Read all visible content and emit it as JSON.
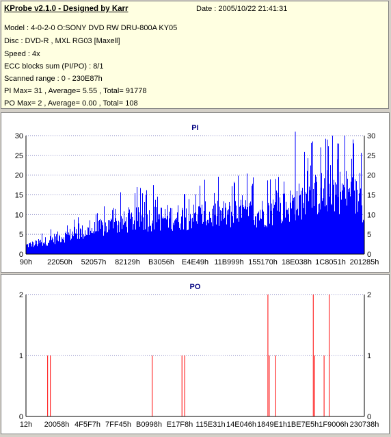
{
  "header": {
    "title": "KProbe v2.1.0 - Designed by Karr",
    "date": "Date : 2005/10/22 21:41:31",
    "lines": [
      "Model : 4-0-2-0 O:SONY    DVD RW DRU-800A  KY05",
      "Disc : DVD-R , MXL RG03 [Maxell]",
      "Speed : 4x",
      "ECC blocks sum (PI/PO) : 8/1",
      "Scanned range : 0 - 230E87h",
      "PI Max= 31 , Average= 5.55 , Total= 91778",
      "PO Max= 2 , Average= 0.00 , Total= 108"
    ]
  },
  "chart_data": [
    {
      "type": "bar",
      "title": "PI",
      "ylim": [
        0,
        30
      ],
      "yticks": [
        0,
        5,
        10,
        15,
        20,
        25,
        30
      ],
      "xticks": [
        "90h",
        "22050h",
        "52057h",
        "82129h",
        "B3056h",
        "E4E49h",
        "11B999h",
        "155170h",
        "18E038h",
        "1C8051h",
        "201285h"
      ],
      "grid": true,
      "color": "#0000ff",
      "profile": [
        [
          0,
          2.5
        ],
        [
          0.05,
          3.5
        ],
        [
          0.1,
          5
        ],
        [
          0.15,
          6
        ],
        [
          0.2,
          7
        ],
        [
          0.28,
          9
        ],
        [
          0.33,
          10
        ],
        [
          0.4,
          10.5
        ],
        [
          0.5,
          11
        ],
        [
          0.6,
          11.5
        ],
        [
          0.7,
          12
        ],
        [
          0.75,
          13
        ],
        [
          0.8,
          15
        ],
        [
          0.85,
          17
        ],
        [
          0.9,
          18.5
        ],
        [
          0.95,
          18
        ],
        [
          0.98,
          16
        ],
        [
          1.0,
          14
        ]
      ],
      "spikes": [
        [
          0.795,
          31
        ],
        [
          0.905,
          30
        ],
        [
          0.89,
          29
        ],
        [
          0.92,
          28
        ],
        [
          0.87,
          27
        ]
      ]
    },
    {
      "type": "bar",
      "title": "PO",
      "ylim": [
        0,
        2
      ],
      "yticks": [
        0,
        1,
        2
      ],
      "xticks": [
        "12h",
        "20058h",
        "4F5F7h",
        "7FF45h",
        "B0998h",
        "E17F8h",
        "115E31h",
        "14E046h",
        "1849E1h",
        "1BE7E5h",
        "1F9006h",
        "230738h"
      ],
      "grid": true,
      "color": "#ff0000",
      "bars": [
        [
          0.063,
          1
        ],
        [
          0.071,
          1
        ],
        [
          0.372,
          1
        ],
        [
          0.46,
          1
        ],
        [
          0.468,
          1
        ],
        [
          0.714,
          2
        ],
        [
          0.718,
          1
        ],
        [
          0.737,
          1
        ],
        [
          0.848,
          2
        ],
        [
          0.852,
          1
        ],
        [
          0.88,
          1
        ],
        [
          0.895,
          2
        ]
      ]
    }
  ]
}
